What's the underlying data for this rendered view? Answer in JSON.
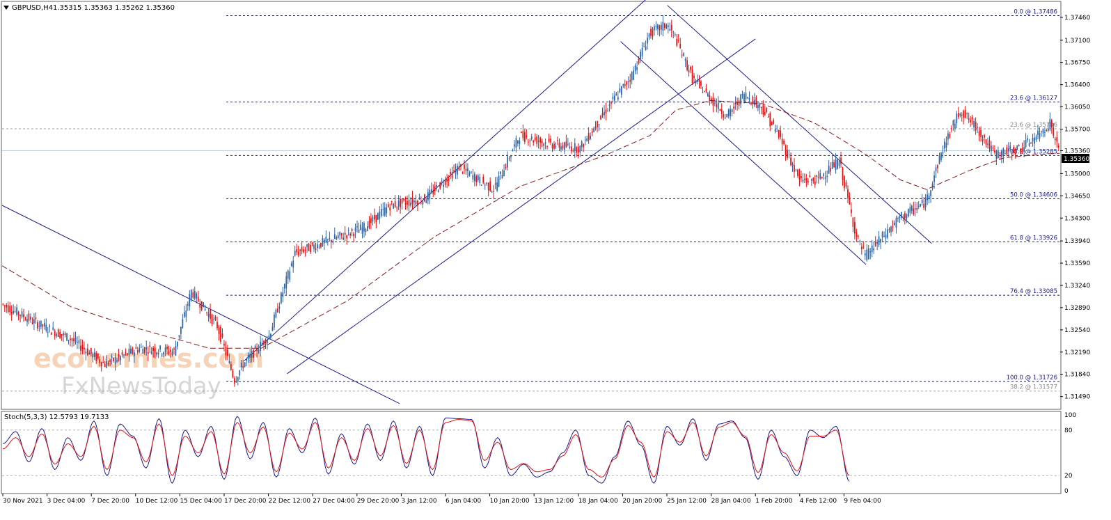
{
  "header": {
    "symbol_info": "GBPUSD,H4",
    "ohlc": "1.35315 1.35363 1.35262 1.35360"
  },
  "watermark": {
    "line1": "economies.com",
    "line2": "FxNewsToday"
  },
  "colors": {
    "bull": "#2b63a8",
    "bear": "#e81010",
    "ma": "#8b1a1a",
    "channel": "#1a1a8c",
    "fib": "#1a1a8c",
    "stoch_main": "#1a1a8c",
    "stoch_signal": "#e81010",
    "background": "#ffffff"
  },
  "chart_data": [
    {
      "type": "candlestick",
      "title": "GBPUSD,H4",
      "current_price": "1.35360",
      "ylim": [
        1.313,
        1.377
      ],
      "y_ticks": [
        "1.37460",
        "1.37100",
        "1.36750",
        "1.36400",
        "1.36050",
        "1.35700",
        "1.35360",
        "1.35000",
        "1.34650",
        "1.34300",
        "1.33940",
        "1.33590",
        "1.33240",
        "1.32890",
        "1.32540",
        "1.32190",
        "1.31840",
        "1.31490"
      ],
      "x_labels": [
        "30 Nov 2021",
        "3 Dec 04:00",
        "7 Dec 20:00",
        "10 Dec 12:00",
        "15 Dec 04:00",
        "17 Dec 20:00",
        "22 Dec 12:00",
        "27 Dec 04:00",
        "29 Dec 20:00",
        "3 Jan 12:00",
        "6 Jan 04:00",
        "10 Jan 20:00",
        "13 Jan 12:00",
        "18 Jan 04:00",
        "20 Jan 20:00",
        "25 Jan 12:00",
        "28 Jan 04:00",
        "1 Feb 20:00",
        "4 Feb 12:00",
        "9 Feb 04:00"
      ],
      "price_path": [
        [
          0,
          1.3295
        ],
        [
          20,
          1.3265
        ],
        [
          40,
          1.324
        ],
        [
          60,
          1.32
        ],
        [
          80,
          1.3225
        ],
        [
          100,
          1.322
        ],
        [
          110,
          1.3315
        ],
        [
          125,
          1.326
        ],
        [
          135,
          1.3175
        ],
        [
          140,
          1.32
        ],
        [
          155,
          1.3245
        ],
        [
          170,
          1.3375
        ],
        [
          190,
          1.3395
        ],
        [
          210,
          1.3415
        ],
        [
          225,
          1.345
        ],
        [
          245,
          1.346
        ],
        [
          265,
          1.351
        ],
        [
          285,
          1.3475
        ],
        [
          300,
          1.356
        ],
        [
          320,
          1.3545
        ],
        [
          335,
          1.354
        ],
        [
          350,
          1.36
        ],
        [
          365,
          1.3655
        ],
        [
          375,
          1.372
        ],
        [
          385,
          1.3735
        ],
        [
          390,
          1.3715
        ],
        [
          400,
          1.365
        ],
        [
          420,
          1.359
        ],
        [
          430,
          1.3625
        ],
        [
          440,
          1.3605
        ],
        [
          450,
          1.356
        ],
        [
          462,
          1.349
        ],
        [
          472,
          1.349
        ],
        [
          485,
          1.352
        ],
        [
          495,
          1.34
        ],
        [
          500,
          1.337
        ],
        [
          510,
          1.34
        ],
        [
          520,
          1.343
        ],
        [
          535,
          1.3455
        ],
        [
          545,
          1.354
        ],
        [
          555,
          1.36
        ],
        [
          565,
          1.357
        ],
        [
          575,
          1.353
        ],
        [
          590,
          1.354
        ],
        [
          600,
          1.356
        ],
        [
          607,
          1.358
        ],
        [
          612,
          1.3536
        ]
      ],
      "moving_average": [
        [
          0,
          1.3355
        ],
        [
          40,
          1.329
        ],
        [
          80,
          1.3255
        ],
        [
          120,
          1.3225
        ],
        [
          150,
          1.3225
        ],
        [
          200,
          1.33
        ],
        [
          250,
          1.34
        ],
        [
          300,
          1.348
        ],
        [
          350,
          1.353
        ],
        [
          375,
          1.356
        ],
        [
          390,
          1.36
        ],
        [
          410,
          1.3615
        ],
        [
          440,
          1.361
        ],
        [
          470,
          1.358
        ],
        [
          500,
          1.353
        ],
        [
          520,
          1.349
        ],
        [
          535,
          1.3475
        ],
        [
          560,
          1.3505
        ],
        [
          580,
          1.3525
        ],
        [
          600,
          1.353
        ],
        [
          612,
          1.3532
        ]
      ],
      "fibonacci": [
        {
          "label": "0.0 @ 1.37486",
          "value": 1.37486
        },
        {
          "label": "23.6 @ 1.36127",
          "value": 1.36127
        },
        {
          "label": "38.2 @ 1.35285",
          "value": 1.35285
        },
        {
          "label": "50.0 @ 1.34606",
          "value": 1.34606
        },
        {
          "label": "61.8 @ 1.33926",
          "value": 1.33926
        },
        {
          "label": "76.4 @ 1.33085",
          "value": 1.33085
        },
        {
          "label": "100.0 @ 1.31726",
          "value": 1.31726
        }
      ],
      "fibonacci_faint": [
        {
          "label": "23.6 @ 1.35706",
          "value": 1.35706
        },
        {
          "label": "38.2 @ 1.31577",
          "value": 1.31577
        }
      ],
      "channel_lines": [
        {
          "from": [
            0,
            1.345
          ],
          "to": [
            230,
            1.3138
          ]
        },
        {
          "from": [
            140,
            1.3205
          ],
          "to": [
            373,
            1.3775
          ]
        },
        {
          "from": [
            165,
            1.3185
          ],
          "to": [
            436,
            1.3712
          ]
        },
        {
          "from": [
            358,
            1.3708
          ],
          "to": [
            500,
            1.3357
          ]
        },
        {
          "from": [
            385,
            1.3765
          ],
          "to": [
            538,
            1.339
          ]
        }
      ]
    },
    {
      "type": "line",
      "title": "Stoch(5,3,3) 12.5793 19.7133",
      "ylim": [
        0,
        100
      ],
      "y_ticks": [
        "100",
        "80",
        "20",
        "0"
      ],
      "levels": [
        80,
        20
      ],
      "series": [
        {
          "name": "main",
          "value": 12.5793,
          "values": [
            62,
            78,
            38,
            82,
            28,
            70,
            40,
            92,
            20,
            88,
            72,
            30,
            95,
            10,
            80,
            45,
            85,
            15,
            98,
            42,
            90,
            18,
            82,
            50,
            96,
            22,
            75,
            35,
            88,
            40,
            92,
            30,
            85,
            20,
            96,
            95,
            94,
            30,
            70,
            20,
            35,
            18,
            25,
            50,
            80,
            20,
            10,
            45,
            92,
            60,
            10,
            85,
            60,
            95,
            40,
            88,
            92,
            70,
            15,
            80,
            45,
            20,
            80,
            70,
            85,
            12.58
          ]
        },
        {
          "name": "signal",
          "value": 19.7133,
          "values": [
            55,
            70,
            45,
            75,
            35,
            62,
            45,
            85,
            28,
            80,
            70,
            38,
            88,
            20,
            72,
            50,
            78,
            22,
            90,
            50,
            84,
            25,
            76,
            55,
            90,
            30,
            70,
            40,
            82,
            46,
            86,
            36,
            80,
            28,
            90,
            94,
            92,
            40,
            64,
            28,
            36,
            25,
            28,
            46,
            74,
            28,
            18,
            42,
            86,
            64,
            18,
            78,
            64,
            90,
            46,
            84,
            90,
            72,
            24,
            74,
            50,
            26,
            72,
            72,
            80,
            19.71
          ]
        }
      ]
    }
  ]
}
